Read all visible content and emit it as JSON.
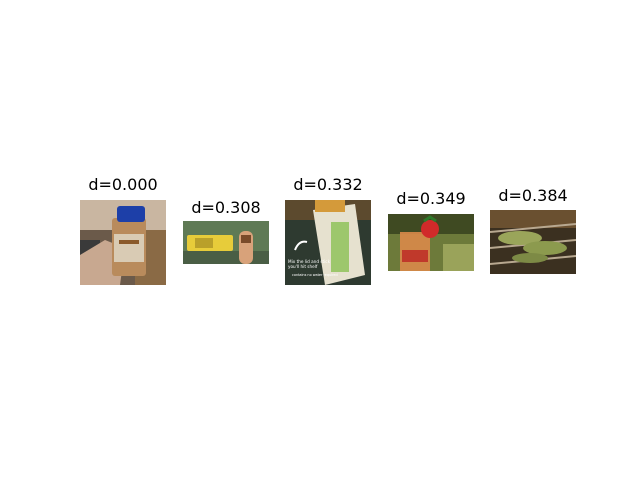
{
  "results": [
    {
      "label": "d=0.000",
      "subject": "spice jar with blue lid held in hand"
    },
    {
      "label": "d=0.308",
      "subject": "snack bar in yellow wrapper"
    },
    {
      "label": "d=0.332",
      "subject": "honey squeeze bottle with green label"
    },
    {
      "label": "d=0.349",
      "subject": "iced drink with strawberry garnish"
    },
    {
      "label": "d=0.384",
      "subject": "grilled skewers on a grill"
    }
  ],
  "overlay_text": {
    "line1": "Mix the lid and stick",
    "line2": "you'll hit shelf",
    "line3": "contains no water required"
  },
  "colors": {
    "text": "#000000",
    "background": "#ffffff"
  }
}
